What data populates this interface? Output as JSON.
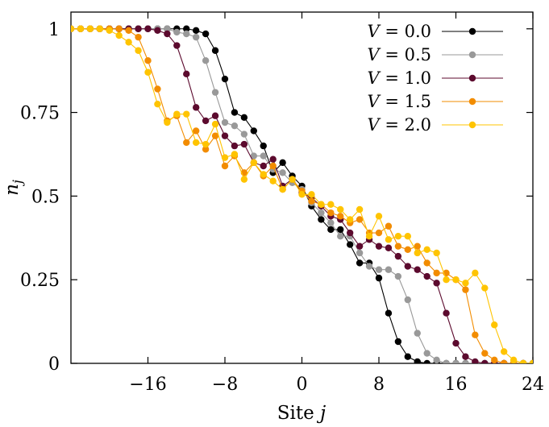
{
  "chart_data": {
    "type": "line",
    "title": "",
    "xlabel": "Site j",
    "ylabel": "n_j",
    "xlim": [
      -24,
      24
    ],
    "ylim": [
      0,
      1.05
    ],
    "xticks": [
      -16,
      -8,
      0,
      8,
      16,
      24
    ],
    "yticks": [
      0,
      0.25,
      0.5,
      0.75,
      1
    ],
    "xtick_labels": [
      "−16",
      "−8",
      "0",
      "8",
      "16",
      "24"
    ],
    "ytick_labels": [
      "0",
      "0.25",
      "0.5",
      "0.75",
      "1"
    ],
    "grid": false,
    "legend_position": "top-right",
    "x": [
      -24,
      -23,
      -22,
      -21,
      -20,
      -19,
      -18,
      -17,
      -16,
      -15,
      -14,
      -13,
      -12,
      -11,
      -10,
      -9,
      -8,
      -7,
      -6,
      -5,
      -4,
      -3,
      -2,
      -1,
      0,
      1,
      2,
      3,
      4,
      5,
      6,
      7,
      8,
      9,
      10,
      11,
      12,
      13,
      14,
      15,
      16,
      17,
      18,
      19,
      20,
      21,
      22,
      23,
      24
    ],
    "series": [
      {
        "name": "V = 0.0",
        "color": "#000000",
        "values": [
          1.0,
          1.0,
          1.0,
          1.0,
          1.0,
          1.0,
          1.0,
          1.0,
          1.0,
          1.0,
          1.0,
          1.0,
          1.0,
          0.995,
          0.985,
          0.935,
          0.85,
          0.75,
          0.735,
          0.695,
          0.65,
          0.57,
          0.6,
          0.56,
          0.53,
          0.47,
          0.43,
          0.4,
          0.4,
          0.355,
          0.3,
          0.3,
          0.255,
          0.15,
          0.065,
          0.02,
          0.005,
          0.0,
          0.0,
          0.0,
          0.0,
          0.0,
          0.0,
          0.0,
          0.0,
          0.0,
          0.0,
          0.0,
          0.0
        ]
      },
      {
        "name": "V = 0.5",
        "color": "#999999",
        "values": [
          1.0,
          1.0,
          1.0,
          1.0,
          1.0,
          1.0,
          1.0,
          1.0,
          1.0,
          1.0,
          1.0,
          0.99,
          0.985,
          0.975,
          0.905,
          0.81,
          0.72,
          0.71,
          0.685,
          0.62,
          0.62,
          0.58,
          0.57,
          0.54,
          0.52,
          0.48,
          0.45,
          0.42,
          0.38,
          0.38,
          0.33,
          0.29,
          0.28,
          0.28,
          0.26,
          0.19,
          0.09,
          0.03,
          0.01,
          0.0,
          0.0,
          0.0,
          0.0,
          0.0,
          0.0,
          0.0,
          0.0,
          0.0,
          0.0
        ]
      },
      {
        "name": "V = 1.0",
        "color": "#5c0a2e",
        "values": [
          1.0,
          1.0,
          1.0,
          1.0,
          1.0,
          1.0,
          1.0,
          1.0,
          1.0,
          0.995,
          0.985,
          0.95,
          0.865,
          0.765,
          0.725,
          0.74,
          0.68,
          0.65,
          0.655,
          0.6,
          0.59,
          0.61,
          0.53,
          0.55,
          0.51,
          0.495,
          0.47,
          0.44,
          0.43,
          0.39,
          0.35,
          0.37,
          0.35,
          0.345,
          0.32,
          0.29,
          0.28,
          0.26,
          0.24,
          0.15,
          0.06,
          0.02,
          0.005,
          0.0,
          0.0,
          0.0,
          0.0,
          0.0,
          0.0
        ]
      },
      {
        "name": "V = 1.5",
        "color": "#f28c00",
        "values": [
          1.0,
          1.0,
          1.0,
          1.0,
          1.0,
          1.0,
          0.995,
          0.975,
          0.905,
          0.82,
          0.725,
          0.74,
          0.66,
          0.695,
          0.64,
          0.68,
          0.59,
          0.62,
          0.57,
          0.6,
          0.56,
          0.59,
          0.52,
          0.55,
          0.515,
          0.485,
          0.475,
          0.45,
          0.44,
          0.42,
          0.43,
          0.39,
          0.39,
          0.41,
          0.35,
          0.34,
          0.35,
          0.3,
          0.27,
          0.27,
          0.25,
          0.22,
          0.085,
          0.03,
          0.01,
          0.0,
          0.0,
          0.0,
          0.0
        ]
      },
      {
        "name": "V = 2.0",
        "color": "#ffc400",
        "values": [
          1.0,
          1.0,
          1.0,
          1.0,
          0.995,
          0.98,
          0.96,
          0.935,
          0.87,
          0.775,
          0.72,
          0.745,
          0.745,
          0.66,
          0.655,
          0.715,
          0.615,
          0.625,
          0.55,
          0.6,
          0.565,
          0.545,
          0.52,
          0.55,
          0.505,
          0.505,
          0.475,
          0.475,
          0.46,
          0.43,
          0.46,
          0.38,
          0.44,
          0.37,
          0.38,
          0.38,
          0.33,
          0.34,
          0.33,
          0.25,
          0.25,
          0.24,
          0.27,
          0.225,
          0.115,
          0.035,
          0.01,
          0.0,
          0.0
        ]
      }
    ]
  }
}
